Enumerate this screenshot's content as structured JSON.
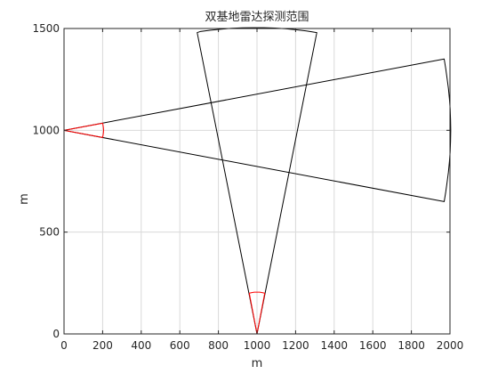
{
  "chart_data": {
    "type": "line",
    "title": "双基地雷达探测范围",
    "xlabel": "m",
    "ylabel": "m",
    "xlim": [
      0,
      2000
    ],
    "ylim": [
      0,
      1500
    ],
    "x_ticks": [
      "0",
      "200",
      "400",
      "600",
      "800",
      "1000",
      "1200",
      "1400",
      "1600",
      "1800",
      "2000"
    ],
    "y_ticks": [
      "0",
      "500",
      "1000",
      "1500"
    ],
    "grid": true,
    "colors": {
      "axes": "#262626",
      "grid": "#d9d9d9",
      "black": "#000000",
      "red": "#ff0000"
    },
    "series": [
      {
        "color": "#000000",
        "x": [
          0,
          1970,
          1978,
          1985,
          1992,
          1997,
          2001,
          2003,
          2004,
          2003,
          2001,
          1997,
          1992,
          1985,
          1978,
          1970,
          0
        ],
        "y": [
          1000,
          1350,
          1303,
          1255,
          1205,
          1155,
          1105,
          1053,
          1000,
          947,
          895,
          845,
          795,
          745,
          697,
          650,
          1000
        ]
      },
      {
        "color": "#000000",
        "x": [
          1000,
          1310,
          1256,
          1202,
          1147,
          1092,
          1036,
          980,
          925,
          869,
          814,
          760,
          706,
          690,
          1000
        ],
        "y": [
          0,
          1480,
          1488,
          1494,
          1499,
          1502,
          1504,
          1504,
          1503,
          1501,
          1497,
          1492,
          1485,
          1480,
          0
        ]
      },
      {
        "color": "#ff0000",
        "x": [
          0,
          200,
          202,
          204,
          205,
          204,
          202,
          200,
          0
        ],
        "y": [
          1000,
          1035,
          1026,
          1013,
          1000,
          987,
          974,
          965,
          1000
        ]
      },
      {
        "color": "#ff0000",
        "x": [
          1000,
          1040,
          1027,
          1014,
          1000,
          986,
          973,
          960,
          1000
        ],
        "y": [
          0,
          200,
          203,
          205,
          205,
          205,
          203,
          200,
          0
        ]
      }
    ]
  }
}
